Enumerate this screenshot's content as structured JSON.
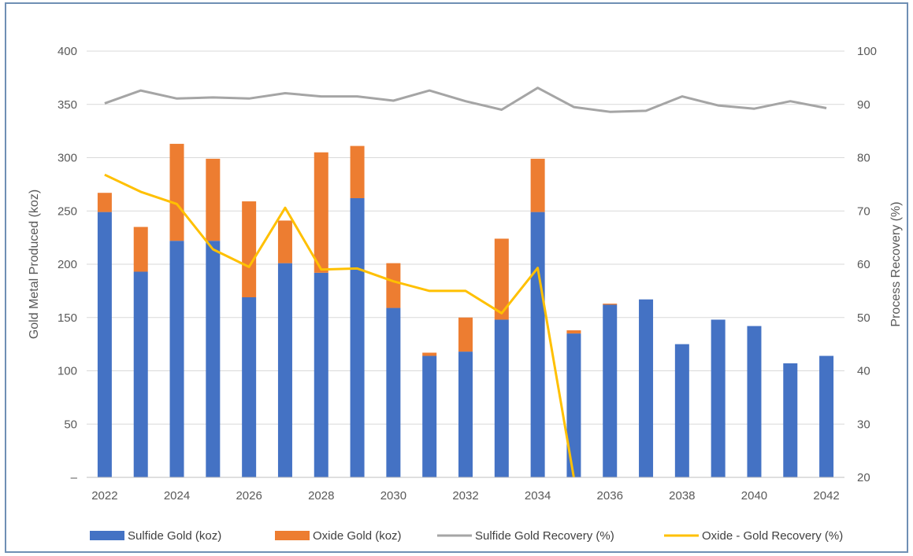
{
  "chart_data": {
    "type": "bar",
    "stacked": true,
    "categories": [
      "2022",
      "2023",
      "2024",
      "2025",
      "2026",
      "2027",
      "2028",
      "2029",
      "2030",
      "2031",
      "2032",
      "2033",
      "2034",
      "2035",
      "2036",
      "2037",
      "2038",
      "2039",
      "2040",
      "2041",
      "2042"
    ],
    "x_tick_labels": [
      "2022",
      "2024",
      "2026",
      "2028",
      "2030",
      "2032",
      "2034",
      "2036",
      "2038",
      "2040",
      "2042"
    ],
    "series": [
      {
        "name": "Sulfide Gold (koz)",
        "type": "bar",
        "axis": "left",
        "color": "#4472C4",
        "values": [
          249,
          193,
          222,
          222,
          169,
          201,
          192,
          262,
          159,
          114,
          118,
          148,
          249,
          135,
          162,
          167,
          125,
          148,
          142,
          107,
          114
        ]
      },
      {
        "name": "Oxide Gold (koz)",
        "type": "bar",
        "axis": "left",
        "color": "#ED7D31",
        "values": [
          18,
          42,
          91,
          77,
          90,
          40,
          113,
          49,
          42,
          3,
          32,
          76,
          50,
          3,
          1,
          0,
          0,
          0,
          0,
          0,
          0
        ]
      },
      {
        "name": "Sulfide Gold Recovery (%)",
        "type": "line",
        "axis": "right",
        "color": "#A5A5A5",
        "values": [
          90.2,
          92.6,
          91.1,
          91.3,
          91.1,
          92.1,
          91.5,
          91.5,
          90.7,
          92.6,
          90.6,
          89.0,
          93.1,
          89.5,
          88.6,
          88.8,
          91.5,
          89.8,
          89.2,
          90.6,
          89.3
        ]
      },
      {
        "name": "Oxide - Gold Recovery (%)",
        "type": "line",
        "axis": "right",
        "color": "#FFC000",
        "values": [
          76.8,
          73.6,
          71.3,
          62.8,
          59.5,
          70.6,
          59.0,
          59.2,
          56.8,
          55.0,
          55.0,
          50.8,
          59.3,
          null,
          null,
          null,
          null,
          null,
          null,
          null,
          null
        ],
        "drop_to": 2035
      }
    ],
    "ylabel": "Gold Metal Produced (koz)",
    "y2label": "Process Recovery (%)",
    "ylim": [
      0,
      400
    ],
    "y_ticks": [
      0,
      50,
      100,
      150,
      200,
      250,
      300,
      350,
      400
    ],
    "y_tick_labels": [
      "–",
      "50",
      "100",
      "150",
      "200",
      "250",
      "300",
      "350",
      "400"
    ],
    "y2lim": [
      20,
      100
    ],
    "y2_ticks": [
      20,
      30,
      40,
      50,
      60,
      70,
      80,
      90,
      100
    ],
    "y2_tick_labels": [
      "20",
      "30",
      "40",
      "50",
      "60",
      "70",
      "80",
      "90",
      "100"
    ],
    "grid": true,
    "legend_position": "bottom"
  }
}
